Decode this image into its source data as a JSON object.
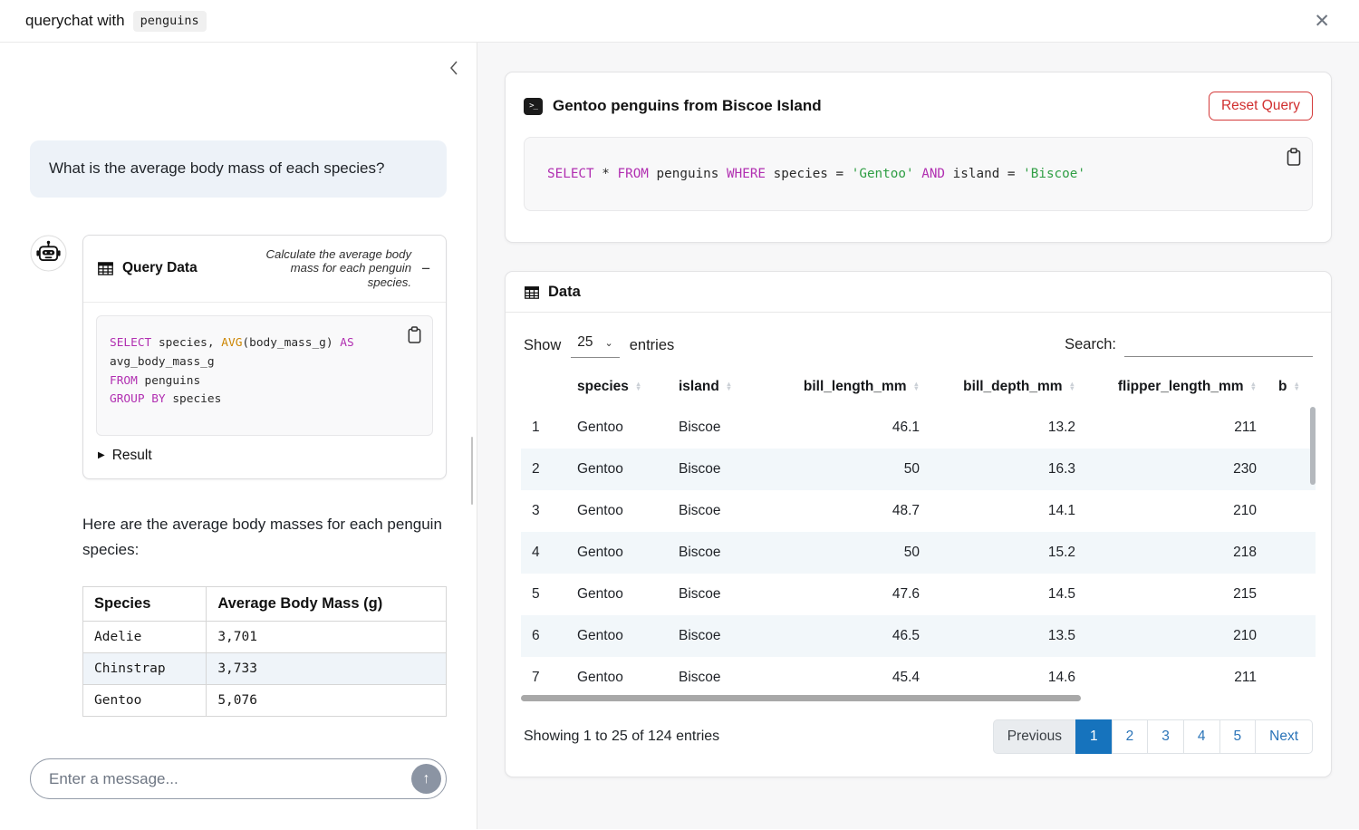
{
  "window": {
    "title_prefix": "querychat with",
    "dataset_badge": "penguins",
    "close_icon": "✕"
  },
  "icons": {
    "minus": "−",
    "result_caret": "▶",
    "send_arrow": "↑",
    "select_chevron": "⌄",
    "sort_asc": "▲",
    "sort_desc": "▼",
    "terminal_glyph": ">_"
  },
  "sidebar": {
    "user_message": "What is the average body mass of each species?",
    "tool_card": {
      "title": "Query Data",
      "subtitle": "Calculate the average body mass for each penguin species.",
      "result_label": "Result",
      "sql_lines": [
        [
          {
            "t": "SELECT",
            "c": "kw"
          },
          {
            "t": " species, ",
            "c": "pl"
          },
          {
            "t": "AVG",
            "c": "fn"
          },
          {
            "t": "(body_mass_g) ",
            "c": "pl"
          },
          {
            "t": "AS",
            "c": "kw"
          }
        ],
        [
          {
            "t": "avg_body_mass_g",
            "c": "pl"
          }
        ],
        [
          {
            "t": "FROM",
            "c": "kw"
          },
          {
            "t": " penguins",
            "c": "pl"
          }
        ],
        [
          {
            "t": "GROUP BY",
            "c": "kw"
          },
          {
            "t": " species",
            "c": "pl"
          }
        ]
      ]
    },
    "answer_text": "Here are the average body masses for each penguin species:",
    "result_table": {
      "headers": [
        "Species",
        "Average Body Mass (g)"
      ],
      "rows": [
        [
          "Adelie",
          "3,701"
        ],
        [
          "Chinstrap",
          "3,733"
        ],
        [
          "Gentoo",
          "5,076"
        ]
      ]
    },
    "input_placeholder": "Enter a message...",
    "send_icon": "↑"
  },
  "main": {
    "query_card": {
      "title": "Gentoo penguins from Biscoe Island",
      "reset_button_label": "Reset Query",
      "sql_lines": [
        [
          {
            "t": "SELECT",
            "c": "kw"
          },
          {
            "t": " * ",
            "c": "pl"
          },
          {
            "t": "FROM",
            "c": "kw"
          },
          {
            "t": " penguins ",
            "c": "pl"
          },
          {
            "t": "WHERE",
            "c": "kw"
          },
          {
            "t": " species = ",
            "c": "pl"
          },
          {
            "t": "'Gentoo'",
            "c": "str"
          },
          {
            "t": " ",
            "c": "pl"
          },
          {
            "t": "AND",
            "c": "kw"
          },
          {
            "t": " island = ",
            "c": "pl"
          },
          {
            "t": "'Biscoe'",
            "c": "str"
          }
        ]
      ]
    },
    "data_card": {
      "title": "Data",
      "show_label": "Show",
      "page_size": "25",
      "entries_label": "entries",
      "search_label": "Search:",
      "columns": [
        {
          "label": "species",
          "align": "left"
        },
        {
          "label": "island",
          "align": "left"
        },
        {
          "label": "bill_length_mm",
          "align": "right"
        },
        {
          "label": "bill_depth_mm",
          "align": "right"
        },
        {
          "label": "flipper_length_mm",
          "align": "right"
        },
        {
          "label": "b",
          "align": "left"
        }
      ],
      "rows": [
        [
          "1",
          "Gentoo",
          "Biscoe",
          "46.1",
          "13.2",
          "211"
        ],
        [
          "2",
          "Gentoo",
          "Biscoe",
          "50",
          "16.3",
          "230"
        ],
        [
          "3",
          "Gentoo",
          "Biscoe",
          "48.7",
          "14.1",
          "210"
        ],
        [
          "4",
          "Gentoo",
          "Biscoe",
          "50",
          "15.2",
          "218"
        ],
        [
          "5",
          "Gentoo",
          "Biscoe",
          "47.6",
          "14.5",
          "215"
        ],
        [
          "6",
          "Gentoo",
          "Biscoe",
          "46.5",
          "13.5",
          "210"
        ],
        [
          "7",
          "Gentoo",
          "Biscoe",
          "45.4",
          "14.6",
          "211"
        ]
      ],
      "footer_info": "Showing 1 to 25 of 124 entries",
      "pagination": {
        "prev": "Previous",
        "pages": [
          "1",
          "2",
          "3",
          "4",
          "5"
        ],
        "active": "1",
        "next": "Next"
      }
    }
  },
  "colors": {
    "accent_blue": "#1673bd",
    "link_blue": "#2b74b8",
    "reset_red": "#d12f2f",
    "sql_keyword": "#b12fb1",
    "sql_function": "#cc8500",
    "sql_string": "#2f9e44",
    "row_stripe": "#f2f7fa",
    "user_bubble": "#edf2f8"
  }
}
